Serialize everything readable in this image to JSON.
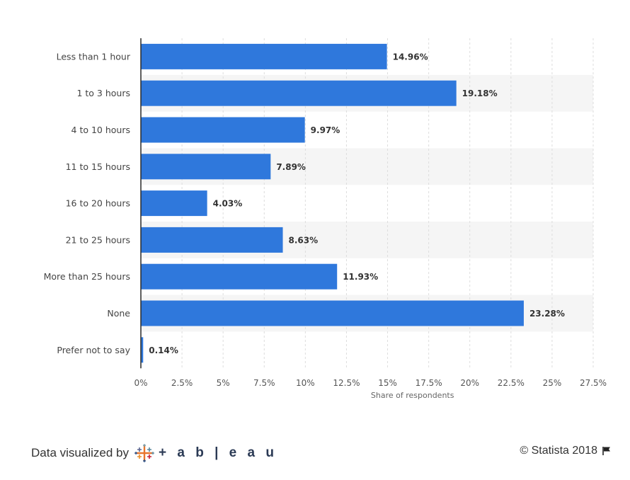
{
  "chart_data": {
    "type": "bar",
    "orientation": "horizontal",
    "categories": [
      "Less than 1 hour",
      "1 to 3 hours",
      "4 to 10 hours",
      "11 to 15 hours",
      "16 to 20 hours",
      "21 to 25 hours",
      "More than 25 hours",
      "None",
      "Prefer not to say"
    ],
    "values": [
      14.96,
      19.18,
      9.97,
      7.89,
      4.03,
      8.63,
      11.93,
      23.28,
      0.14
    ],
    "value_labels": [
      "14.96%",
      "19.18%",
      "9.97%",
      "7.89%",
      "4.03%",
      "8.63%",
      "11.93%",
      "23.28%",
      "0.14%"
    ],
    "xlabel": "Share of respondents",
    "ylabel": "",
    "xlim": [
      0,
      27.5
    ],
    "x_ticks": [
      0,
      2.5,
      5,
      7.5,
      10,
      12.5,
      15,
      17.5,
      20,
      22.5,
      25,
      27.5
    ],
    "x_tick_labels": [
      "0%",
      "2.5%",
      "5%",
      "7.5%",
      "10%",
      "12.5%",
      "15%",
      "17.5%",
      "20%",
      "22.5%",
      "25%",
      "27.5%"
    ],
    "grid": true,
    "colors": {
      "bar": "#2f78dc",
      "stripe": "#f5f5f5",
      "grid": "#dddddd",
      "axis": "#2a2a2a"
    }
  },
  "footer": {
    "visualized_by": "Data visualized by",
    "tableau_wordmark": "+ a b | e a u",
    "tableau_icon": "tableau-plus-icon",
    "copyright": "© Statista 2018",
    "flag_icon": "flag-icon"
  }
}
